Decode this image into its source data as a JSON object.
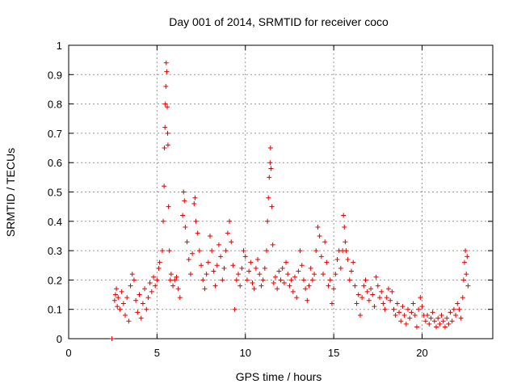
{
  "chart_data": {
    "type": "scatter",
    "title": "Day 001 of 2014, SRMTID for receiver coco",
    "xlabel": "GPS time / hours",
    "ylabel": "SRMTID / TECUs",
    "xlim": [
      0,
      24
    ],
    "ylim": [
      0,
      1
    ],
    "grid": true,
    "marker": "+",
    "series_color": "#e00000",
    "x_ticks": [
      0,
      5,
      10,
      15,
      20
    ],
    "x_tick_labels": [
      "0",
      "5",
      "10",
      "15",
      "20"
    ],
    "y_ticks": [
      0,
      0.1,
      0.2,
      0.3,
      0.4,
      0.5,
      0.6,
      0.7,
      0.8,
      0.9,
      1
    ],
    "y_tick_labels": [
      "0",
      "0.1",
      "0.2",
      "0.3",
      "0.4",
      "0.5",
      "0.6",
      "0.7",
      "0.8",
      "0.9",
      "1"
    ],
    "series": [
      {
        "name": "SRMTID",
        "points": [
          [
            2.45,
            0.0
          ],
          [
            2.6,
            0.13
          ],
          [
            2.65,
            0.15
          ],
          [
            2.7,
            0.17
          ],
          [
            2.75,
            0.11
          ],
          [
            2.8,
            0.14
          ],
          [
            2.9,
            0.1
          ],
          [
            3.0,
            0.16
          ],
          [
            3.1,
            0.12
          ],
          [
            3.2,
            0.08
          ],
          [
            3.3,
            0.14
          ],
          [
            3.4,
            0.06
          ],
          [
            3.5,
            0.18
          ],
          [
            3.6,
            0.22
          ],
          [
            3.7,
            0.2
          ],
          [
            3.8,
            0.13
          ],
          [
            3.9,
            0.09
          ],
          [
            4.0,
            0.15
          ],
          [
            4.1,
            0.07
          ],
          [
            4.2,
            0.12
          ],
          [
            4.3,
            0.17
          ],
          [
            4.4,
            0.1
          ],
          [
            4.5,
            0.14
          ],
          [
            4.6,
            0.19
          ],
          [
            4.7,
            0.16
          ],
          [
            4.8,
            0.21
          ],
          [
            4.9,
            0.18
          ],
          [
            5.0,
            0.2
          ],
          [
            5.1,
            0.24
          ],
          [
            5.15,
            0.26
          ],
          [
            5.3,
            0.3
          ],
          [
            5.35,
            0.4
          ],
          [
            5.4,
            0.52
          ],
          [
            5.42,
            0.65
          ],
          [
            5.45,
            0.72
          ],
          [
            5.47,
            0.8
          ],
          [
            5.5,
            0.86
          ],
          [
            5.52,
            0.94
          ],
          [
            5.55,
            0.91
          ],
          [
            5.58,
            0.79
          ],
          [
            5.6,
            0.7
          ],
          [
            5.62,
            0.66
          ],
          [
            5.65,
            0.45
          ],
          [
            5.7,
            0.3
          ],
          [
            5.75,
            0.2
          ],
          [
            5.8,
            0.22
          ],
          [
            5.9,
            0.18
          ],
          [
            6.0,
            0.2
          ],
          [
            6.1,
            0.21
          ],
          [
            6.2,
            0.17
          ],
          [
            6.3,
            0.14
          ],
          [
            6.45,
            0.42
          ],
          [
            6.5,
            0.5
          ],
          [
            6.55,
            0.47
          ],
          [
            6.6,
            0.38
          ],
          [
            6.7,
            0.33
          ],
          [
            6.8,
            0.27
          ],
          [
            6.9,
            0.22
          ],
          [
            7.0,
            0.29
          ],
          [
            7.1,
            0.46
          ],
          [
            7.15,
            0.48
          ],
          [
            7.2,
            0.4
          ],
          [
            7.3,
            0.36
          ],
          [
            7.4,
            0.3
          ],
          [
            7.5,
            0.25
          ],
          [
            7.6,
            0.2
          ],
          [
            7.7,
            0.17
          ],
          [
            7.8,
            0.22
          ],
          [
            7.9,
            0.26
          ],
          [
            8.0,
            0.35
          ],
          [
            8.1,
            0.3
          ],
          [
            8.2,
            0.23
          ],
          [
            8.3,
            0.18
          ],
          [
            8.4,
            0.25
          ],
          [
            8.5,
            0.32
          ],
          [
            8.6,
            0.28
          ],
          [
            8.7,
            0.2
          ],
          [
            8.8,
            0.24
          ],
          [
            8.9,
            0.3
          ],
          [
            9.0,
            0.36
          ],
          [
            9.1,
            0.4
          ],
          [
            9.2,
            0.33
          ],
          [
            9.3,
            0.25
          ],
          [
            9.4,
            0.1
          ],
          [
            9.5,
            0.2
          ],
          [
            9.6,
            0.22
          ],
          [
            9.7,
            0.18
          ],
          [
            9.8,
            0.24
          ],
          [
            9.9,
            0.3
          ],
          [
            10.0,
            0.28
          ],
          [
            10.1,
            0.2
          ],
          [
            10.2,
            0.23
          ],
          [
            10.3,
            0.26
          ],
          [
            10.4,
            0.19
          ],
          [
            10.5,
            0.17
          ],
          [
            10.6,
            0.24
          ],
          [
            10.7,
            0.27
          ],
          [
            10.8,
            0.22
          ],
          [
            10.9,
            0.18
          ],
          [
            11.0,
            0.2
          ],
          [
            11.1,
            0.24
          ],
          [
            11.2,
            0.3
          ],
          [
            11.25,
            0.4
          ],
          [
            11.3,
            0.48
          ],
          [
            11.35,
            0.55
          ],
          [
            11.4,
            0.6
          ],
          [
            11.42,
            0.65
          ],
          [
            11.45,
            0.58
          ],
          [
            11.5,
            0.45
          ],
          [
            11.55,
            0.32
          ],
          [
            11.6,
            0.19
          ],
          [
            11.7,
            0.21
          ],
          [
            11.8,
            0.17
          ],
          [
            11.9,
            0.23
          ],
          [
            12.0,
            0.2
          ],
          [
            12.1,
            0.24
          ],
          [
            12.2,
            0.19
          ],
          [
            12.3,
            0.26
          ],
          [
            12.4,
            0.22
          ],
          [
            12.5,
            0.18
          ],
          [
            12.6,
            0.2
          ],
          [
            12.7,
            0.16
          ],
          [
            12.8,
            0.21
          ],
          [
            12.9,
            0.14
          ],
          [
            13.0,
            0.23
          ],
          [
            13.1,
            0.3
          ],
          [
            13.2,
            0.25
          ],
          [
            13.3,
            0.2
          ],
          [
            13.4,
            0.17
          ],
          [
            13.5,
            0.13
          ],
          [
            13.6,
            0.18
          ],
          [
            13.7,
            0.24
          ],
          [
            13.8,
            0.2
          ],
          [
            13.9,
            0.22
          ],
          [
            14.0,
            0.3
          ],
          [
            14.1,
            0.38
          ],
          [
            14.2,
            0.35
          ],
          [
            14.3,
            0.28
          ],
          [
            14.4,
            0.22
          ],
          [
            14.5,
            0.33
          ],
          [
            14.6,
            0.26
          ],
          [
            14.7,
            0.18
          ],
          [
            14.8,
            0.2
          ],
          [
            14.9,
            0.12
          ],
          [
            15.0,
            0.17
          ],
          [
            15.1,
            0.22
          ],
          [
            15.2,
            0.27
          ],
          [
            15.3,
            0.3
          ],
          [
            15.4,
            0.24
          ],
          [
            15.5,
            0.3
          ],
          [
            15.55,
            0.42
          ],
          [
            15.6,
            0.38
          ],
          [
            15.65,
            0.33
          ],
          [
            15.7,
            0.3
          ],
          [
            15.8,
            0.27
          ],
          [
            15.9,
            0.2
          ],
          [
            16.0,
            0.23
          ],
          [
            16.1,
            0.26
          ],
          [
            16.2,
            0.18
          ],
          [
            16.3,
            0.12
          ],
          [
            16.4,
            0.15
          ],
          [
            16.5,
            0.08
          ],
          [
            16.6,
            0.14
          ],
          [
            16.7,
            0.18
          ],
          [
            16.8,
            0.2
          ],
          [
            16.9,
            0.16
          ],
          [
            17.0,
            0.13
          ],
          [
            17.1,
            0.17
          ],
          [
            17.2,
            0.15
          ],
          [
            17.3,
            0.11
          ],
          [
            17.4,
            0.21
          ],
          [
            17.5,
            0.18
          ],
          [
            17.6,
            0.14
          ],
          [
            17.7,
            0.16
          ],
          [
            17.8,
            0.12
          ],
          [
            17.9,
            0.1
          ],
          [
            18.0,
            0.14
          ],
          [
            18.1,
            0.17
          ],
          [
            18.2,
            0.13
          ],
          [
            18.3,
            0.16
          ],
          [
            18.4,
            0.1
          ],
          [
            18.5,
            0.08
          ],
          [
            18.6,
            0.12
          ],
          [
            18.7,
            0.09
          ],
          [
            18.8,
            0.06
          ],
          [
            18.9,
            0.11
          ],
          [
            19.0,
            0.08
          ],
          [
            19.1,
            0.05
          ],
          [
            19.2,
            0.1
          ],
          [
            19.3,
            0.07
          ],
          [
            19.4,
            0.09
          ],
          [
            19.5,
            0.12
          ],
          [
            19.6,
            0.08
          ],
          [
            19.7,
            0.04
          ],
          [
            19.8,
            0.1
          ],
          [
            19.9,
            0.14
          ],
          [
            20.0,
            0.11
          ],
          [
            20.1,
            0.08
          ],
          [
            20.2,
            0.06
          ],
          [
            20.3,
            0.08
          ],
          [
            20.4,
            0.05
          ],
          [
            20.5,
            0.07
          ],
          [
            20.6,
            0.09
          ],
          [
            20.7,
            0.06
          ],
          [
            20.8,
            0.04
          ],
          [
            20.9,
            0.07
          ],
          [
            21.0,
            0.05
          ],
          [
            21.1,
            0.08
          ],
          [
            21.2,
            0.06
          ],
          [
            21.3,
            0.04
          ],
          [
            21.4,
            0.07
          ],
          [
            21.5,
            0.05
          ],
          [
            21.6,
            0.09
          ],
          [
            21.7,
            0.06
          ],
          [
            21.8,
            0.1
          ],
          [
            21.9,
            0.08
          ],
          [
            22.0,
            0.12
          ],
          [
            22.1,
            0.1
          ],
          [
            22.2,
            0.07
          ],
          [
            22.3,
            0.14
          ],
          [
            22.35,
            0.2
          ],
          [
            22.4,
            0.26
          ],
          [
            22.45,
            0.3
          ],
          [
            22.5,
            0.22
          ],
          [
            22.55,
            0.28
          ],
          [
            22.6,
            0.18
          ]
        ]
      }
    ]
  }
}
